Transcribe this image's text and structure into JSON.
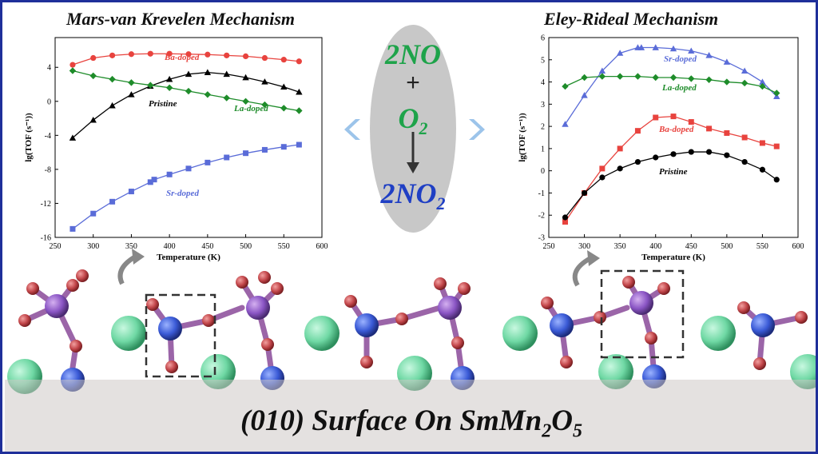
{
  "banner": {
    "text_before_sub1": "(010) Surface On SmMn",
    "sub1": "2",
    "text_between": "O",
    "sub2": "5"
  },
  "reaction": {
    "reactant1": "2NO",
    "plus": "+",
    "reactant2_main": "O",
    "reactant2_sub": "2",
    "product_main": "2NO",
    "product_sub": "2",
    "colors": {
      "reactants": "#1ea34a",
      "product": "#1f3fc4",
      "ellipse": "#c8c8c8"
    }
  },
  "colors": {
    "Pristine": "#000000",
    "Ba-doped": "#e8433e",
    "La-doped": "#1e8c2a",
    "Sr-doped": "#5a6cd8"
  },
  "chart_data": [
    {
      "type": "line",
      "title": "Mars-van Krevelen Mechanism",
      "xlabel": "Temperature (K)",
      "ylabel": "lg(TOF (s⁻¹))",
      "xlim": [
        250,
        600
      ],
      "ylim": [
        -16,
        7.5
      ],
      "xticks": [
        250,
        300,
        350,
        400,
        450,
        500,
        550,
        600
      ],
      "yticks": [
        -16,
        -12,
        -8,
        -4,
        0,
        4
      ],
      "series": [
        {
          "name": "Ba-doped",
          "marker": "circle",
          "x": [
            273,
            300,
            325,
            350,
            375,
            400,
            425,
            450,
            475,
            500,
            525,
            550,
            570
          ],
          "y": [
            4.3,
            5.1,
            5.4,
            5.55,
            5.6,
            5.6,
            5.55,
            5.5,
            5.4,
            5.3,
            5.1,
            4.9,
            4.7
          ]
        },
        {
          "name": "Pristine",
          "marker": "triangle",
          "x": [
            273,
            300,
            325,
            350,
            375,
            400,
            425,
            450,
            475,
            500,
            525,
            550,
            570
          ],
          "y": [
            -4.3,
            -2.2,
            -0.5,
            0.8,
            1.8,
            2.6,
            3.2,
            3.4,
            3.2,
            2.8,
            2.3,
            1.7,
            1.1
          ]
        },
        {
          "name": "La-doped",
          "marker": "diamond",
          "x": [
            273,
            300,
            325,
            350,
            375,
            400,
            425,
            450,
            475,
            500,
            525,
            550,
            570
          ],
          "y": [
            3.6,
            3.0,
            2.6,
            2.2,
            1.9,
            1.6,
            1.2,
            0.8,
            0.4,
            0.0,
            -0.4,
            -0.8,
            -1.1
          ]
        },
        {
          "name": "Sr-doped",
          "marker": "square",
          "x": [
            273,
            300,
            325,
            350,
            375,
            380,
            400,
            425,
            450,
            475,
            500,
            525,
            550,
            570
          ],
          "y": [
            -15.0,
            -13.2,
            -11.8,
            -10.6,
            -9.5,
            -9.2,
            -8.6,
            -7.9,
            -7.2,
            -6.6,
            -6.1,
            -5.7,
            -5.35,
            -5.1
          ]
        }
      ]
    },
    {
      "type": "line",
      "title": "Eley-Rideal Mechanism",
      "xlabel": "Temperature (K)",
      "ylabel": "lg(TOF (s⁻¹))",
      "xlim": [
        250,
        600
      ],
      "ylim": [
        -3,
        6
      ],
      "xticks": [
        250,
        300,
        350,
        400,
        450,
        500,
        550,
        600
      ],
      "yticks": [
        -3,
        -2,
        -1,
        0,
        1,
        2,
        3,
        4,
        5,
        6
      ],
      "series": [
        {
          "name": "Sr-doped",
          "marker": "triangle",
          "x": [
            273,
            300,
            325,
            350,
            375,
            380,
            400,
            425,
            450,
            475,
            500,
            525,
            550,
            570
          ],
          "y": [
            2.1,
            3.4,
            4.5,
            5.3,
            5.55,
            5.55,
            5.55,
            5.5,
            5.4,
            5.2,
            4.9,
            4.5,
            4.0,
            3.35
          ]
        },
        {
          "name": "La-doped",
          "marker": "diamond",
          "x": [
            273,
            300,
            325,
            350,
            375,
            400,
            425,
            450,
            475,
            500,
            525,
            550,
            570
          ],
          "y": [
            3.8,
            4.2,
            4.25,
            4.25,
            4.25,
            4.2,
            4.2,
            4.15,
            4.1,
            4.0,
            3.95,
            3.8,
            3.5
          ]
        },
        {
          "name": "Ba-doped",
          "marker": "square",
          "x": [
            273,
            300,
            325,
            350,
            375,
            400,
            425,
            450,
            475,
            500,
            525,
            550,
            570
          ],
          "y": [
            -2.3,
            -1.0,
            0.1,
            1.0,
            1.8,
            2.4,
            2.45,
            2.2,
            1.9,
            1.7,
            1.5,
            1.25,
            1.1
          ]
        },
        {
          "name": "Pristine",
          "marker": "circle",
          "x": [
            273,
            300,
            325,
            350,
            375,
            400,
            425,
            450,
            475,
            500,
            525,
            550,
            570
          ],
          "y": [
            -2.1,
            -1.0,
            -0.3,
            0.1,
            0.4,
            0.6,
            0.75,
            0.85,
            0.85,
            0.7,
            0.4,
            0.05,
            -0.4
          ]
        }
      ]
    }
  ]
}
